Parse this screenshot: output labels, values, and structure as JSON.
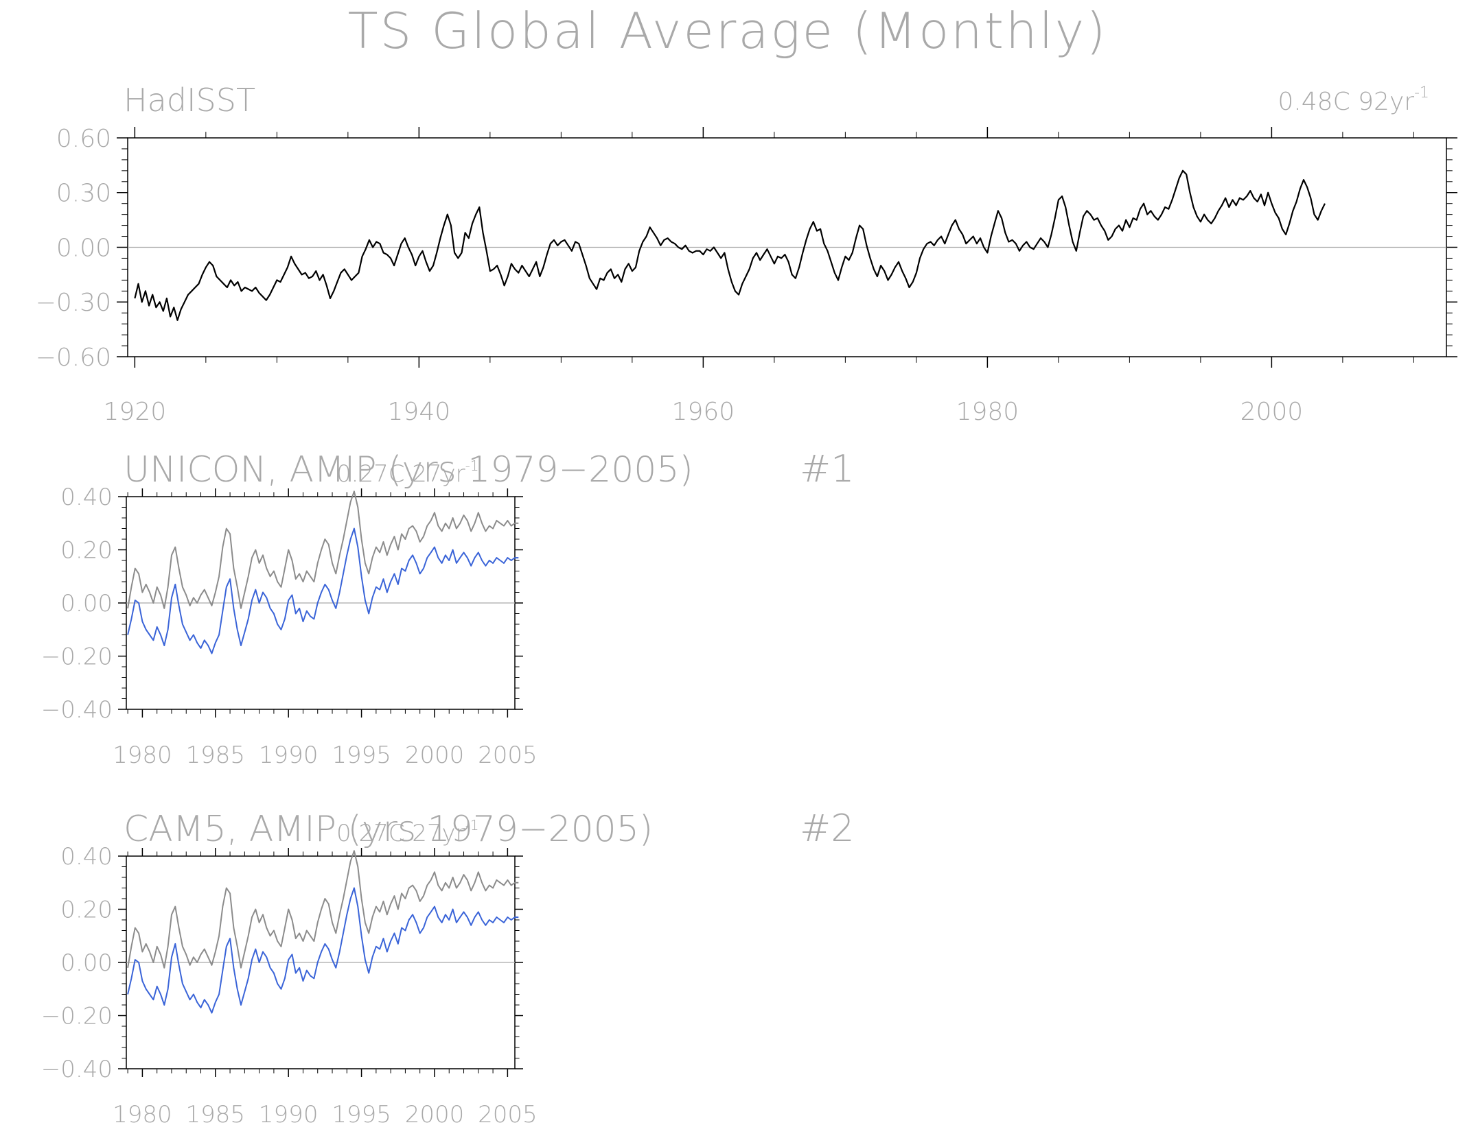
{
  "figure": {
    "title": "TS Global Average (Monthly)",
    "colors": {
      "text": "#a9a9a9",
      "axes": "#000000",
      "zero_line": "#a9a9a9",
      "obs": "#000000",
      "obs_ref": "#8c8c8c",
      "model": "#3a64d8"
    }
  },
  "chart_data": [
    {
      "type": "line",
      "panel": "observations",
      "title_left": "HadISST",
      "trend_value": "0.48C 92yr",
      "trend_exponent": "-1",
      "xlim": [
        1919.5,
        2012.3
      ],
      "ylim": [
        -0.6,
        0.6
      ],
      "x_ticks": [
        1920,
        1940,
        1960,
        1980,
        2000
      ],
      "y_ticks": [
        0.6,
        0.3,
        0.0,
        -0.3,
        -0.6
      ],
      "y_tick_labels": [
        "0.60",
        "0.30",
        "0.00",
        "−0.30",
        "−0.60"
      ],
      "x_tick_labels": [
        "1920",
        "1940",
        "1960",
        "1980",
        "2000"
      ],
      "zero_line": true,
      "series": [
        {
          "key": "obs",
          "x_start": 1920.0,
          "x_step": 0.25,
          "values": [
            -0.28,
            -0.2,
            -0.3,
            -0.24,
            -0.32,
            -0.26,
            -0.33,
            -0.3,
            -0.35,
            -0.28,
            -0.38,
            -0.33,
            -0.4,
            -0.34,
            -0.3,
            -0.26,
            -0.24,
            -0.22,
            -0.2,
            -0.15,
            -0.11,
            -0.08,
            -0.1,
            -0.16,
            -0.18,
            -0.2,
            -0.22,
            -0.18,
            -0.21,
            -0.19,
            -0.24,
            -0.22,
            -0.23,
            -0.24,
            -0.22,
            -0.25,
            -0.27,
            -0.29,
            -0.26,
            -0.22,
            -0.18,
            -0.19,
            -0.15,
            -0.11,
            -0.05,
            -0.09,
            -0.12,
            -0.15,
            -0.14,
            -0.17,
            -0.16,
            -0.13,
            -0.18,
            -0.15,
            -0.21,
            -0.28,
            -0.24,
            -0.19,
            -0.14,
            -0.12,
            -0.15,
            -0.18,
            -0.16,
            -0.14,
            -0.05,
            -0.01,
            0.04,
            0.0,
            0.03,
            0.02,
            -0.03,
            -0.04,
            -0.06,
            -0.1,
            -0.04,
            0.02,
            0.05,
            0.0,
            -0.04,
            -0.1,
            -0.05,
            -0.02,
            -0.08,
            -0.13,
            -0.1,
            -0.03,
            0.05,
            0.12,
            0.18,
            0.12,
            -0.03,
            -0.06,
            -0.03,
            0.08,
            0.05,
            0.13,
            0.18,
            0.22,
            0.08,
            -0.02,
            -0.13,
            -0.12,
            -0.1,
            -0.15,
            -0.21,
            -0.16,
            -0.09,
            -0.12,
            -0.14,
            -0.1,
            -0.13,
            -0.16,
            -0.12,
            -0.08,
            -0.16,
            -0.11,
            -0.04,
            0.02,
            0.04,
            0.01,
            0.03,
            0.04,
            0.01,
            -0.02,
            0.03,
            0.02,
            -0.04,
            -0.1,
            -0.17,
            -0.2,
            -0.23,
            -0.17,
            -0.18,
            -0.14,
            -0.12,
            -0.17,
            -0.15,
            -0.19,
            -0.12,
            -0.09,
            -0.13,
            -0.11,
            -0.02,
            0.03,
            0.06,
            0.11,
            0.08,
            0.05,
            0.01,
            0.04,
            0.05,
            0.03,
            0.02,
            0.0,
            -0.01,
            0.01,
            -0.02,
            -0.03,
            -0.02,
            -0.02,
            -0.04,
            -0.01,
            -0.02,
            0.0,
            -0.03,
            -0.06,
            -0.03,
            -0.12,
            -0.19,
            -0.24,
            -0.26,
            -0.2,
            -0.16,
            -0.12,
            -0.06,
            -0.03,
            -0.07,
            -0.04,
            -0.01,
            -0.05,
            -0.09,
            -0.05,
            -0.06,
            -0.04,
            -0.08,
            -0.15,
            -0.17,
            -0.11,
            -0.03,
            0.04,
            0.1,
            0.14,
            0.09,
            0.1,
            0.02,
            -0.02,
            -0.08,
            -0.14,
            -0.18,
            -0.11,
            -0.05,
            -0.07,
            -0.03,
            0.05,
            0.12,
            0.1,
            0.01,
            -0.06,
            -0.12,
            -0.16,
            -0.1,
            -0.13,
            -0.18,
            -0.15,
            -0.11,
            -0.08,
            -0.13,
            -0.17,
            -0.22,
            -0.19,
            -0.14,
            -0.06,
            -0.01,
            0.02,
            0.03,
            0.01,
            0.04,
            0.06,
            0.02,
            0.07,
            0.12,
            0.15,
            0.1,
            0.07,
            0.02,
            0.04,
            0.06,
            0.02,
            0.05,
            0.0,
            -0.03,
            0.06,
            0.13,
            0.2,
            0.16,
            0.08,
            0.03,
            0.04,
            0.02,
            -0.02,
            0.01,
            0.03,
            0.0,
            -0.01,
            0.02,
            0.05,
            0.03,
            0.0,
            0.07,
            0.16,
            0.26,
            0.28,
            0.22,
            0.12,
            0.03,
            -0.02,
            0.08,
            0.17,
            0.2,
            0.18,
            0.15,
            0.16,
            0.12,
            0.09,
            0.04,
            0.06,
            0.1,
            0.12,
            0.09,
            0.15,
            0.11,
            0.16,
            0.15,
            0.21,
            0.24,
            0.18,
            0.2,
            0.17,
            0.15,
            0.18,
            0.22,
            0.21,
            0.26,
            0.32,
            0.38,
            0.42,
            0.4,
            0.3,
            0.22,
            0.17,
            0.14,
            0.18,
            0.15,
            0.13,
            0.16,
            0.2,
            0.23,
            0.27,
            0.22,
            0.26,
            0.23,
            0.27,
            0.26,
            0.28,
            0.31,
            0.27,
            0.25,
            0.29,
            0.23,
            0.3,
            0.24,
            0.19,
            0.16,
            0.1,
            0.07,
            0.13,
            0.2,
            0.25,
            0.32,
            0.37,
            0.33,
            0.27,
            0.18,
            0.15,
            0.2,
            0.24
          ]
        }
      ]
    },
    {
      "type": "line",
      "panel": "model_1",
      "title_left": "UNICON, AMIP (yrs 1979−2005)",
      "trend_value": "0.27C 27yr",
      "trend_exponent": "-1",
      "panel_number": "#1",
      "xlim": [
        1978.9,
        2005.5
      ],
      "ylim": [
        -0.4,
        0.4
      ],
      "x_ticks": [
        1980,
        1985,
        1990,
        1995,
        2000,
        2005
      ],
      "x_tick_labels": [
        "1980",
        "1985",
        "1990",
        "1995",
        "2000",
        "2005"
      ],
      "y_ticks": [
        0.4,
        0.2,
        0.0,
        -0.2,
        -0.4
      ],
      "y_tick_labels": [
        "0.40",
        "0.20",
        "0.00",
        "−0.20",
        "−0.40"
      ],
      "zero_line": true,
      "series": [
        {
          "key": "obs_ref",
          "x_start": 1979.0,
          "x_step": 0.25,
          "values": [
            -0.02,
            0.06,
            0.13,
            0.11,
            0.04,
            0.07,
            0.04,
            0.0,
            0.06,
            0.03,
            -0.02,
            0.06,
            0.18,
            0.21,
            0.13,
            0.06,
            0.03,
            -0.01,
            0.02,
            0.0,
            0.03,
            0.05,
            0.02,
            -0.01,
            0.04,
            0.1,
            0.21,
            0.28,
            0.26,
            0.13,
            0.06,
            -0.02,
            0.04,
            0.1,
            0.17,
            0.2,
            0.15,
            0.18,
            0.13,
            0.1,
            0.12,
            0.08,
            0.06,
            0.13,
            0.2,
            0.16,
            0.09,
            0.11,
            0.08,
            0.12,
            0.1,
            0.08,
            0.15,
            0.2,
            0.24,
            0.22,
            0.15,
            0.11,
            0.18,
            0.24,
            0.31,
            0.38,
            0.42,
            0.36,
            0.24,
            0.15,
            0.11,
            0.17,
            0.21,
            0.19,
            0.23,
            0.18,
            0.22,
            0.25,
            0.2,
            0.26,
            0.24,
            0.28,
            0.29,
            0.27,
            0.23,
            0.25,
            0.29,
            0.31,
            0.34,
            0.29,
            0.27,
            0.3,
            0.28,
            0.32,
            0.28,
            0.3,
            0.33,
            0.31,
            0.27,
            0.3,
            0.34,
            0.3,
            0.27,
            0.29,
            0.28,
            0.31,
            0.3,
            0.29,
            0.31,
            0.29,
            0.3,
            0.3
          ]
        },
        {
          "key": "model",
          "x_start": 1979.0,
          "x_step": 0.25,
          "values": [
            -0.12,
            -0.06,
            0.01,
            0.0,
            -0.07,
            -0.1,
            -0.12,
            -0.14,
            -0.09,
            -0.12,
            -0.16,
            -0.1,
            0.02,
            0.07,
            -0.01,
            -0.08,
            -0.11,
            -0.14,
            -0.12,
            -0.15,
            -0.17,
            -0.14,
            -0.16,
            -0.19,
            -0.15,
            -0.12,
            -0.03,
            0.06,
            0.09,
            -0.02,
            -0.1,
            -0.16,
            -0.11,
            -0.06,
            0.01,
            0.05,
            0.0,
            0.04,
            0.02,
            -0.02,
            -0.04,
            -0.08,
            -0.1,
            -0.06,
            0.01,
            0.03,
            -0.04,
            -0.02,
            -0.07,
            -0.03,
            -0.05,
            -0.06,
            0.0,
            0.04,
            0.07,
            0.05,
            0.01,
            -0.02,
            0.04,
            0.11,
            0.18,
            0.24,
            0.28,
            0.21,
            0.1,
            0.01,
            -0.04,
            0.02,
            0.06,
            0.05,
            0.09,
            0.04,
            0.08,
            0.11,
            0.07,
            0.13,
            0.12,
            0.16,
            0.18,
            0.15,
            0.11,
            0.13,
            0.17,
            0.19,
            0.21,
            0.17,
            0.15,
            0.18,
            0.16,
            0.2,
            0.15,
            0.17,
            0.19,
            0.17,
            0.14,
            0.17,
            0.19,
            0.16,
            0.14,
            0.16,
            0.15,
            0.17,
            0.16,
            0.15,
            0.17,
            0.16,
            0.17,
            0.17
          ]
        }
      ]
    },
    {
      "type": "line",
      "panel": "model_2",
      "title_left": "CAM5, AMIP (yrs 1979−2005)",
      "trend_value": "0.27C 27yr",
      "trend_exponent": "-1",
      "panel_number": "#2",
      "xlim": [
        1978.9,
        2005.5
      ],
      "ylim": [
        -0.4,
        0.4
      ],
      "x_ticks": [
        1980,
        1985,
        1990,
        1995,
        2000,
        2005
      ],
      "x_tick_labels": [
        "1980",
        "1985",
        "1990",
        "1995",
        "2000",
        "2005"
      ],
      "y_ticks": [
        0.4,
        0.2,
        0.0,
        -0.2,
        -0.4
      ],
      "y_tick_labels": [
        "0.40",
        "0.20",
        "0.00",
        "−0.20",
        "−0.40"
      ],
      "zero_line": true,
      "series": [
        {
          "key": "obs_ref",
          "x_start": 1979.0,
          "x_step": 0.25,
          "values": [
            -0.02,
            0.06,
            0.13,
            0.11,
            0.04,
            0.07,
            0.04,
            0.0,
            0.06,
            0.03,
            -0.02,
            0.06,
            0.18,
            0.21,
            0.13,
            0.06,
            0.03,
            -0.01,
            0.02,
            0.0,
            0.03,
            0.05,
            0.02,
            -0.01,
            0.04,
            0.1,
            0.21,
            0.28,
            0.26,
            0.13,
            0.06,
            -0.02,
            0.04,
            0.1,
            0.17,
            0.2,
            0.15,
            0.18,
            0.13,
            0.1,
            0.12,
            0.08,
            0.06,
            0.13,
            0.2,
            0.16,
            0.09,
            0.11,
            0.08,
            0.12,
            0.1,
            0.08,
            0.15,
            0.2,
            0.24,
            0.22,
            0.15,
            0.11,
            0.18,
            0.24,
            0.31,
            0.38,
            0.42,
            0.36,
            0.24,
            0.15,
            0.11,
            0.17,
            0.21,
            0.19,
            0.23,
            0.18,
            0.22,
            0.25,
            0.2,
            0.26,
            0.24,
            0.28,
            0.29,
            0.27,
            0.23,
            0.25,
            0.29,
            0.31,
            0.34,
            0.29,
            0.27,
            0.3,
            0.28,
            0.32,
            0.28,
            0.3,
            0.33,
            0.31,
            0.27,
            0.3,
            0.34,
            0.3,
            0.27,
            0.29,
            0.28,
            0.31,
            0.3,
            0.29,
            0.31,
            0.29,
            0.3,
            0.3
          ]
        },
        {
          "key": "model",
          "x_start": 1979.0,
          "x_step": 0.25,
          "values": [
            -0.12,
            -0.06,
            0.01,
            0.0,
            -0.07,
            -0.1,
            -0.12,
            -0.14,
            -0.09,
            -0.12,
            -0.16,
            -0.1,
            0.02,
            0.07,
            -0.01,
            -0.08,
            -0.11,
            -0.14,
            -0.12,
            -0.15,
            -0.17,
            -0.14,
            -0.16,
            -0.19,
            -0.15,
            -0.12,
            -0.03,
            0.06,
            0.09,
            -0.02,
            -0.1,
            -0.16,
            -0.11,
            -0.06,
            0.01,
            0.05,
            0.0,
            0.04,
            0.02,
            -0.02,
            -0.04,
            -0.08,
            -0.1,
            -0.06,
            0.01,
            0.03,
            -0.04,
            -0.02,
            -0.07,
            -0.03,
            -0.05,
            -0.06,
            0.0,
            0.04,
            0.07,
            0.05,
            0.01,
            -0.02,
            0.04,
            0.11,
            0.18,
            0.24,
            0.28,
            0.21,
            0.1,
            0.01,
            -0.04,
            0.02,
            0.06,
            0.05,
            0.09,
            0.04,
            0.08,
            0.11,
            0.07,
            0.13,
            0.12,
            0.16,
            0.18,
            0.15,
            0.11,
            0.13,
            0.17,
            0.19,
            0.21,
            0.17,
            0.15,
            0.18,
            0.16,
            0.2,
            0.15,
            0.17,
            0.19,
            0.17,
            0.14,
            0.17,
            0.19,
            0.16,
            0.14,
            0.16,
            0.15,
            0.17,
            0.16,
            0.15,
            0.17,
            0.16,
            0.17,
            0.17
          ]
        }
      ]
    }
  ]
}
